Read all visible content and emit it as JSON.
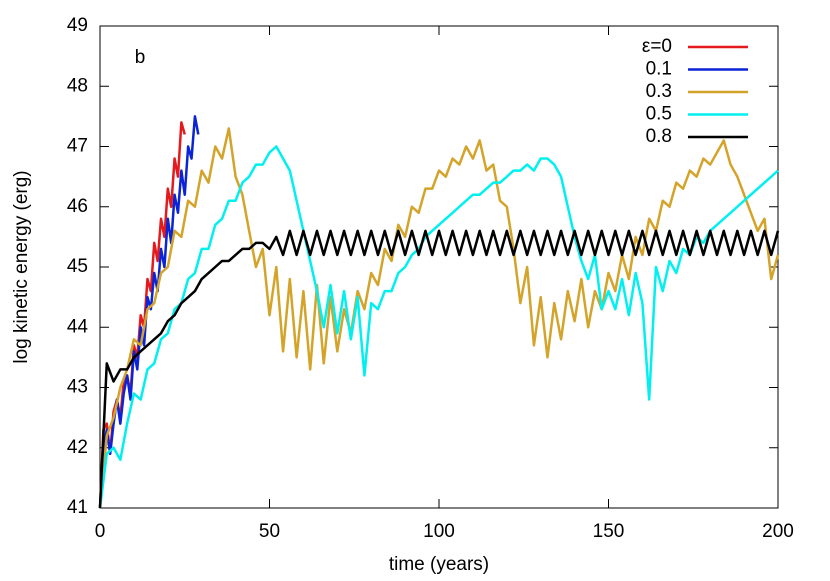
{
  "chart_data": {
    "type": "line",
    "xlabel": "time (years)",
    "ylabel": "log kinetic energy (erg)",
    "annotation": "b",
    "xlim": [
      0,
      200
    ],
    "xticks": [
      0,
      50,
      100,
      150,
      200
    ],
    "ylim": [
      41,
      49
    ],
    "yticks": [
      41,
      42,
      43,
      44,
      45,
      46,
      47,
      48,
      49
    ],
    "legend": "top-right",
    "series": [
      {
        "name": "ε=0",
        "color": "#e41a1c",
        "x": [
          0,
          1,
          2,
          3,
          4,
          5,
          6,
          7,
          8,
          9,
          10,
          11,
          12,
          13,
          14,
          15,
          16,
          17,
          18,
          19,
          20,
          21,
          22,
          23,
          24,
          25
        ],
        "values": [
          41.0,
          42.3,
          42.4,
          41.9,
          42.6,
          42.8,
          42.5,
          43.1,
          43.2,
          42.9,
          43.7,
          43.5,
          44.2,
          44.0,
          44.8,
          44.6,
          45.4,
          45.1,
          45.8,
          45.5,
          46.3,
          46.0,
          46.8,
          46.5,
          47.4,
          47.2
        ]
      },
      {
        "name": "0.1",
        "color": "#0b24d6",
        "x": [
          0,
          1,
          2,
          3,
          4,
          5,
          6,
          7,
          8,
          9,
          10,
          11,
          12,
          13,
          14,
          15,
          16,
          17,
          18,
          19,
          20,
          21,
          22,
          23,
          24,
          25,
          26,
          27,
          28,
          29
        ],
        "values": [
          41.0,
          42.0,
          42.3,
          41.9,
          42.4,
          42.8,
          42.4,
          42.9,
          43.2,
          42.8,
          43.6,
          43.3,
          44.0,
          43.7,
          44.5,
          44.3,
          44.9,
          44.6,
          45.3,
          45.0,
          45.8,
          45.4,
          46.2,
          45.9,
          46.6,
          46.2,
          47.0,
          46.8,
          47.5,
          47.2
        ]
      },
      {
        "name": "0.3",
        "color": "#d4a32a",
        "x": [
          0,
          2,
          4,
          6,
          8,
          10,
          12,
          14,
          16,
          18,
          20,
          22,
          24,
          26,
          28,
          30,
          32,
          34,
          36,
          38,
          40,
          42,
          44,
          46,
          48,
          50,
          52,
          54,
          56,
          58,
          60,
          62,
          64,
          66,
          68,
          70,
          72,
          74,
          76,
          78,
          80,
          82,
          84,
          86,
          88,
          90,
          92,
          94,
          96,
          98,
          100,
          102,
          104,
          106,
          108,
          110,
          112,
          114,
          116,
          118,
          120,
          122,
          124,
          126,
          128,
          130,
          132,
          134,
          136,
          138,
          140,
          142,
          144,
          146,
          148,
          150,
          152,
          154,
          156,
          158,
          160,
          162,
          164,
          166,
          168,
          170,
          172,
          174,
          176,
          178,
          180,
          182,
          184,
          186,
          188,
          190,
          192,
          194,
          196,
          198,
          200
        ],
        "values": [
          41.0,
          42.2,
          42.5,
          43.0,
          43.3,
          43.8,
          43.7,
          44.3,
          44.4,
          44.9,
          45.0,
          45.6,
          45.5,
          46.1,
          46.0,
          46.6,
          46.4,
          47.0,
          46.8,
          47.3,
          46.5,
          46.2,
          45.6,
          45.0,
          45.3,
          44.2,
          45.0,
          43.6,
          44.8,
          43.5,
          44.6,
          43.3,
          44.7,
          43.4,
          44.5,
          43.6,
          44.3,
          43.9,
          44.6,
          44.3,
          44.9,
          44.7,
          45.3,
          45.1,
          45.7,
          45.5,
          46.0,
          45.9,
          46.3,
          46.3,
          46.6,
          46.5,
          46.8,
          46.7,
          47.0,
          46.8,
          47.1,
          46.6,
          46.7,
          46.1,
          46.0,
          45.3,
          44.4,
          45.0,
          43.7,
          44.5,
          43.5,
          44.4,
          43.8,
          44.6,
          44.1,
          44.8,
          44.0,
          44.6,
          44.3,
          44.9,
          44.6,
          45.2,
          44.8,
          45.5,
          45.2,
          45.8,
          45.6,
          46.1,
          46.0,
          46.4,
          46.3,
          46.6,
          46.5,
          46.8,
          46.7,
          46.9,
          47.1,
          46.7,
          46.5,
          46.2,
          45.9,
          45.6,
          45.8,
          44.8,
          45.2
        ]
      },
      {
        "name": "0.5",
        "color": "#00f0f0",
        "x": [
          0,
          2,
          4,
          6,
          8,
          10,
          12,
          14,
          16,
          18,
          20,
          22,
          24,
          26,
          28,
          30,
          32,
          34,
          36,
          38,
          40,
          42,
          44,
          46,
          48,
          50,
          52,
          54,
          56,
          58,
          60,
          62,
          64,
          66,
          68,
          70,
          72,
          74,
          76,
          78,
          80,
          82,
          84,
          86,
          88,
          90,
          92,
          94,
          96,
          98,
          100,
          102,
          104,
          106,
          108,
          110,
          112,
          114,
          116,
          118,
          120,
          122,
          124,
          126,
          128,
          130,
          132,
          134,
          136,
          138,
          140,
          142,
          144,
          146,
          148,
          150,
          152,
          154,
          156,
          158,
          160,
          162,
          164,
          166,
          168,
          170,
          172,
          174,
          176,
          178,
          180,
          182,
          184,
          186,
          188,
          190,
          192,
          194,
          196,
          198,
          200
        ],
        "values": [
          41.0,
          41.9,
          42.0,
          41.8,
          42.4,
          42.9,
          42.8,
          43.3,
          43.4,
          43.8,
          43.9,
          44.3,
          44.4,
          44.8,
          44.9,
          45.3,
          45.3,
          45.7,
          45.8,
          46.1,
          46.1,
          46.4,
          46.5,
          46.7,
          46.7,
          46.9,
          47.0,
          46.8,
          46.6,
          46.1,
          45.6,
          45.1,
          44.6,
          44.0,
          44.7,
          43.9,
          44.6,
          43.8,
          44.5,
          43.2,
          44.4,
          44.3,
          44.6,
          44.6,
          44.9,
          45.0,
          45.2,
          45.3,
          45.5,
          45.6,
          45.7,
          45.8,
          45.9,
          46.0,
          46.1,
          46.2,
          46.2,
          46.3,
          46.4,
          46.4,
          46.5,
          46.6,
          46.6,
          46.7,
          46.6,
          46.8,
          46.8,
          46.7,
          46.5,
          46.0,
          45.5,
          45.1,
          44.8,
          45.2,
          44.3,
          44.6,
          44.3,
          44.8,
          44.2,
          44.9,
          44.4,
          42.8,
          45.0,
          44.6,
          45.1,
          44.9,
          45.3,
          45.2,
          45.5,
          45.4,
          45.6,
          45.7,
          45.8,
          45.9,
          46.0,
          46.1,
          46.2,
          46.3,
          46.4,
          46.5,
          46.6
        ]
      },
      {
        "name": "0.8",
        "color": "#000000",
        "x": [
          0,
          2,
          4,
          6,
          8,
          10,
          12,
          14,
          16,
          18,
          20,
          22,
          24,
          26,
          28,
          30,
          32,
          34,
          36,
          38,
          40,
          42,
          44,
          46,
          48,
          50,
          52,
          54,
          56,
          58,
          60,
          62,
          64,
          66,
          68,
          70,
          72,
          74,
          76,
          78,
          80,
          82,
          84,
          86,
          88,
          90,
          92,
          94,
          96,
          98,
          100,
          102,
          104,
          106,
          108,
          110,
          112,
          114,
          116,
          118,
          120,
          122,
          124,
          126,
          128,
          130,
          132,
          134,
          136,
          138,
          140,
          142,
          144,
          146,
          148,
          150,
          152,
          154,
          156,
          158,
          160,
          162,
          164,
          166,
          168,
          170,
          172,
          174,
          176,
          178,
          180,
          182,
          184,
          186,
          188,
          190,
          192,
          194,
          196,
          198,
          200
        ],
        "values": [
          41.0,
          43.4,
          43.1,
          43.3,
          43.3,
          43.5,
          43.6,
          43.7,
          43.8,
          43.9,
          44.1,
          44.2,
          44.4,
          44.5,
          44.6,
          44.8,
          44.9,
          45.0,
          45.1,
          45.1,
          45.2,
          45.3,
          45.3,
          45.4,
          45.4,
          45.3,
          45.5,
          45.2,
          45.6,
          45.2,
          45.6,
          45.2,
          45.6,
          45.2,
          45.6,
          45.2,
          45.6,
          45.2,
          45.6,
          45.2,
          45.6,
          45.2,
          45.6,
          45.2,
          45.6,
          45.2,
          45.6,
          45.2,
          45.6,
          45.2,
          45.6,
          45.2,
          45.6,
          45.2,
          45.6,
          45.2,
          45.6,
          45.2,
          45.6,
          45.2,
          45.6,
          45.2,
          45.6,
          45.2,
          45.6,
          45.2,
          45.6,
          45.2,
          45.6,
          45.2,
          45.6,
          45.2,
          45.6,
          45.2,
          45.6,
          45.2,
          45.6,
          45.2,
          45.6,
          45.2,
          45.6,
          45.2,
          45.6,
          45.2,
          45.6,
          45.2,
          45.6,
          45.2,
          45.6,
          45.2,
          45.6,
          45.2,
          45.6,
          45.2,
          45.6,
          45.2,
          45.6,
          45.2,
          45.6,
          45.2,
          45.6
        ]
      }
    ]
  }
}
